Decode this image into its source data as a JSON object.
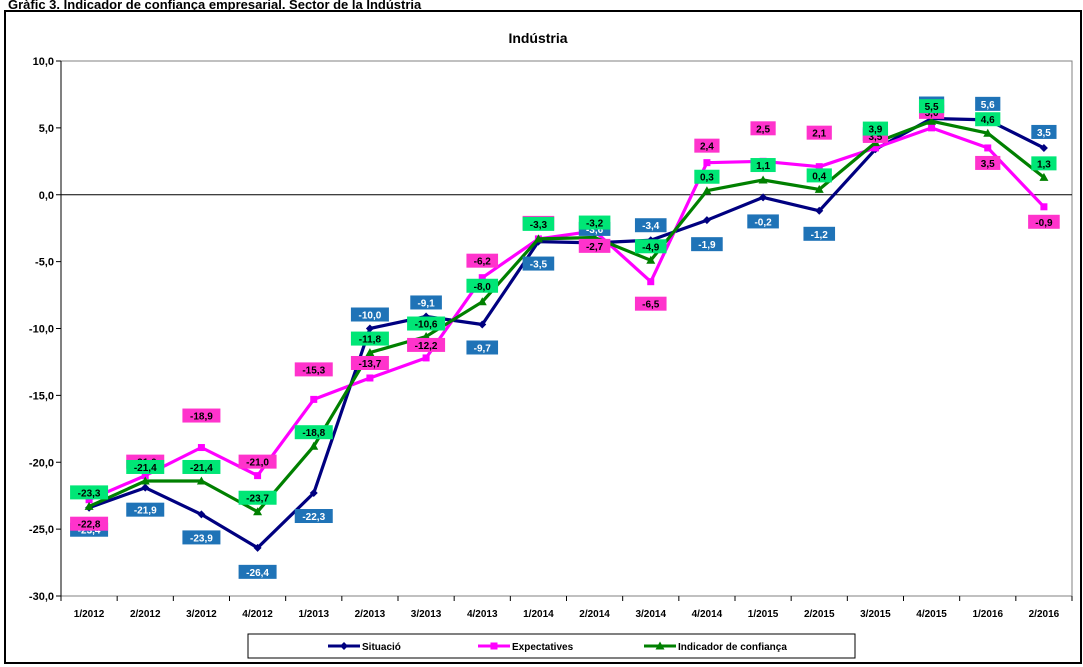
{
  "page": {
    "header_strip": "Gràfic 3. Indicador de confiança empresarial. Sector de la Indústria"
  },
  "chart_data": {
    "type": "line",
    "title": "Indústria",
    "xlabel": "",
    "ylabel": "",
    "categories": [
      "1/2012",
      "2/2012",
      "3/2012",
      "4/2012",
      "1/2013",
      "2/2013",
      "3/2013",
      "4/2013",
      "1/2014",
      "2/2014",
      "3/2014",
      "4/2014",
      "1/2015",
      "2/2015",
      "3/2015",
      "4/2015",
      "1/2016",
      "2/2016"
    ],
    "ylim": [
      -30,
      10
    ],
    "yticks": [
      -30,
      -25,
      -20,
      -15,
      -10,
      -5,
      0,
      5,
      10
    ],
    "ytick_labels": [
      "-30,0",
      "-25,0",
      "-20,0",
      "-15,0",
      "-10,0",
      "-5,0",
      "0,0",
      "5,0",
      "10,0"
    ],
    "grid": false,
    "legend_position": "bottom",
    "series": [
      {
        "name": "Situació",
        "color": "#000080",
        "marker": "diamond",
        "label_bg": "#1f73b7",
        "values": [
          -23.4,
          -21.9,
          -23.9,
          -26.4,
          -22.3,
          -10.0,
          -9.1,
          -9.7,
          -3.5,
          -3.6,
          -3.4,
          -1.9,
          -0.2,
          -1.2,
          3.4,
          5.7,
          5.6,
          3.5
        ],
        "labels": [
          "-23,4",
          "-21,9",
          "-23,9",
          "-26,4",
          "-22,3",
          "-10,0",
          "-9,1",
          "-9,7",
          "-3,5",
          "-3,6",
          "-3,4",
          "-1,9",
          "-0,2",
          "-1,2",
          "3,4",
          "5,7",
          "5,6",
          "3,5"
        ]
      },
      {
        "name": "Expectatives",
        "color": "#ff00ff",
        "marker": "square",
        "label_bg": "#ff33cc",
        "values": [
          -22.8,
          -21.0,
          -18.9,
          -21.0,
          -15.3,
          -13.7,
          -12.2,
          -6.2,
          -3.3,
          -2.7,
          -6.5,
          2.4,
          2.5,
          2.1,
          3.5,
          5.0,
          3.5,
          -0.9
        ],
        "labels": [
          "-22,8",
          "-21,0",
          "-18,9",
          "-21,0",
          "-15,3",
          "-13,7",
          "-12,2",
          "-6,2",
          "-3,3",
          "-2,7",
          "-6,5",
          "2,4",
          "2,5",
          "2,1",
          "3,5",
          "5,0",
          "3,5",
          "-0,9"
        ]
      },
      {
        "name": "Indicador de confiança",
        "color": "#008000",
        "marker": "triangle",
        "label_bg": "#00e676",
        "values": [
          -23.3,
          -21.4,
          -21.4,
          -23.7,
          -18.8,
          -11.8,
          -10.6,
          -8.0,
          -3.3,
          -3.2,
          -4.9,
          0.3,
          1.1,
          0.4,
          3.9,
          5.5,
          4.6,
          1.3
        ],
        "labels": [
          "-23,3",
          "-21,4",
          "-21,4",
          "-23,7",
          "-18,8",
          "-11,8",
          "-10,6",
          "-8,0",
          "-3,3",
          "-3,2",
          "-4,9",
          "0,3",
          "1,1",
          "0,4",
          "3,9",
          "5,5",
          "4,6",
          "1,3"
        ]
      }
    ]
  }
}
